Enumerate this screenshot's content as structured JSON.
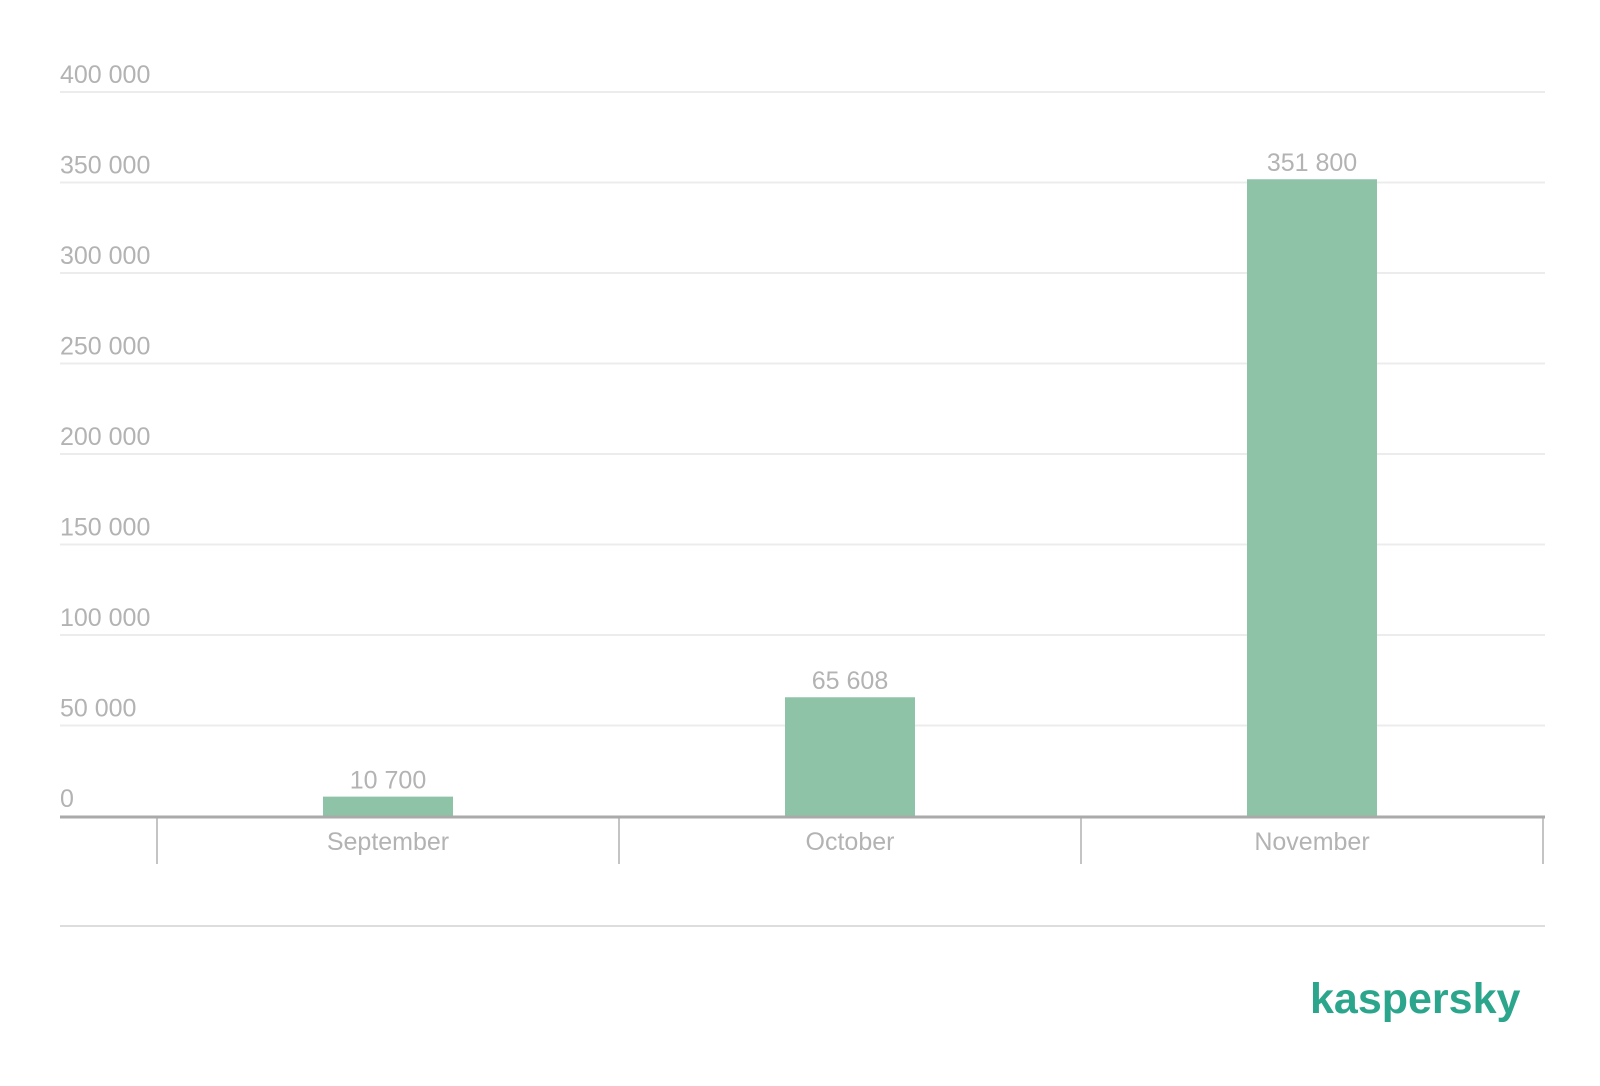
{
  "chart_data": {
    "type": "bar",
    "categories": [
      "September",
      "October",
      "November"
    ],
    "values": [
      10700,
      65608,
      351800
    ],
    "value_labels": [
      "10 700",
      "65 608",
      "351 800"
    ],
    "yticks": [
      0,
      50000,
      100000,
      150000,
      200000,
      250000,
      300000,
      350000,
      400000
    ],
    "ytick_labels": [
      "0",
      "50 000",
      "100 000",
      "150 000",
      "200 000",
      "250 000",
      "300 000",
      "350 000",
      "400 000"
    ],
    "ylim": [
      0,
      400000
    ],
    "grid": true,
    "bar_color": "#8fc3a7",
    "title": "",
    "xlabel": "",
    "ylabel": ""
  },
  "brand": {
    "name": "kaspersky",
    "color": "#2ba68c"
  }
}
